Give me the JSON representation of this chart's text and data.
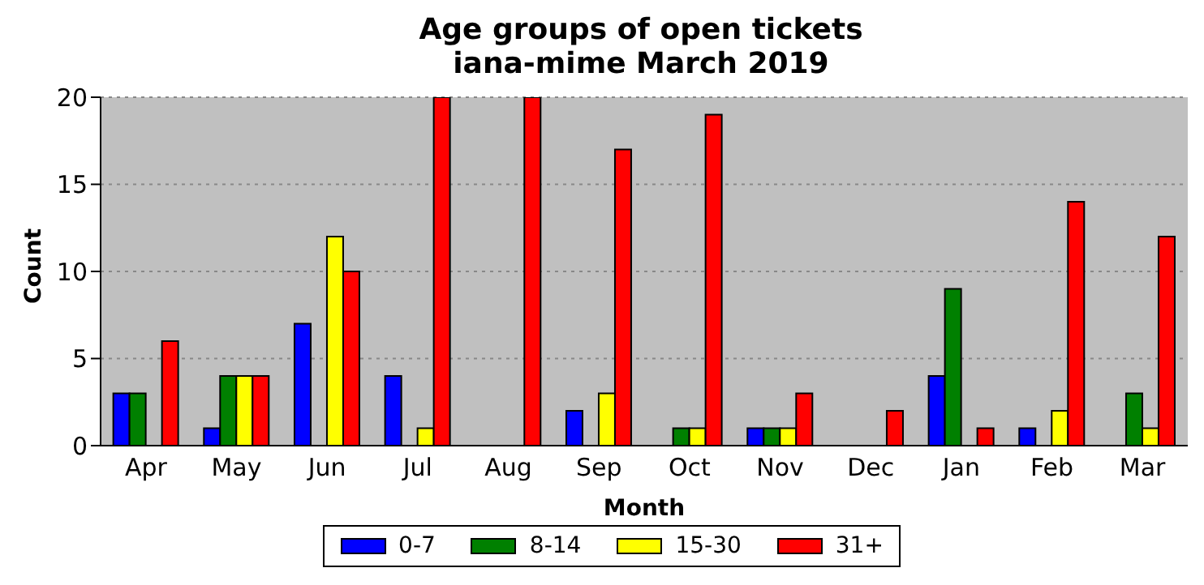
{
  "chart_data": {
    "type": "bar",
    "title": "Age groups of open tickets",
    "subtitle": "iana-mime March 2019",
    "xlabel": "Month",
    "ylabel": "Count",
    "categories": [
      "Apr",
      "May",
      "Jun",
      "Jul",
      "Aug",
      "Sep",
      "Oct",
      "Nov",
      "Dec",
      "Jan",
      "Feb",
      "Mar"
    ],
    "series": [
      {
        "name": "0-7",
        "color": "#0000ff",
        "values": [
          3,
          1,
          7,
          4,
          0,
          2,
          0,
          1,
          0,
          4,
          1,
          0
        ]
      },
      {
        "name": "8-14",
        "color": "#008000",
        "values": [
          3,
          4,
          0,
          0,
          0,
          0,
          1,
          1,
          0,
          9,
          0,
          3
        ]
      },
      {
        "name": "15-30",
        "color": "#ffff00",
        "values": [
          0,
          4,
          12,
          1,
          0,
          3,
          1,
          1,
          0,
          0,
          2,
          1
        ]
      },
      {
        "name": "31+",
        "color": "#ff0000",
        "values": [
          6,
          4,
          10,
          20,
          20,
          17,
          19,
          3,
          2,
          1,
          14,
          12
        ]
      }
    ],
    "ylim": [
      0,
      20
    ],
    "yticks": [
      0,
      5,
      10,
      15,
      20
    ],
    "grid": "y",
    "legend": "bottom"
  }
}
